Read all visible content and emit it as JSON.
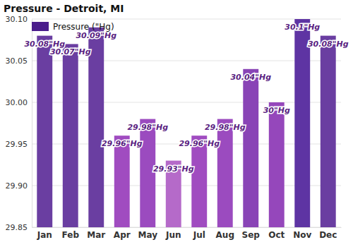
{
  "chart_data": {
    "type": "bar",
    "title": "Pressure - Detroit, MI",
    "series_name": "Pressure (\"Hg)",
    "categories": [
      "Jan",
      "Feb",
      "Mar",
      "Apr",
      "May",
      "Jun",
      "Jul",
      "Aug",
      "Sep",
      "Oct",
      "Nov",
      "Dec"
    ],
    "values": [
      30.08,
      30.07,
      30.09,
      29.96,
      29.98,
      29.93,
      29.96,
      29.98,
      30.04,
      30.0,
      30.1,
      30.08
    ],
    "value_labels": [
      "30.08\"Hg",
      "30.07\"Hg",
      "30.09\"Hg",
      "29.96\"Hg",
      "29.98\"Hg",
      "29.93\"Hg",
      "29.96\"Hg",
      "29.98\"Hg",
      "30.04\"Hg",
      "30\"Hg",
      "30.1\"Hg",
      "30.08\"Hg"
    ],
    "color": "#4b1d8c",
    "colors": [
      "#6a3ea1",
      "#6a3ea1",
      "#6a3ea1",
      "#a04cc0",
      "#9b4bbf",
      "#b56ac9",
      "#a04cc0",
      "#9b4bbf",
      "#8944b6",
      "#9547bb",
      "#5e34a3",
      "#6a3ea1"
    ],
    "ylim": [
      29.85,
      30.1
    ],
    "yticks": [
      29.85,
      {
        "value": 29.9,
        "label": "29.90"
      },
      29.95,
      {
        "value": 30.0,
        "label": "30.00"
      },
      30.05,
      {
        "value": 30.1,
        "label": "30.10"
      }
    ],
    "grid": true,
    "data_labels": true
  }
}
